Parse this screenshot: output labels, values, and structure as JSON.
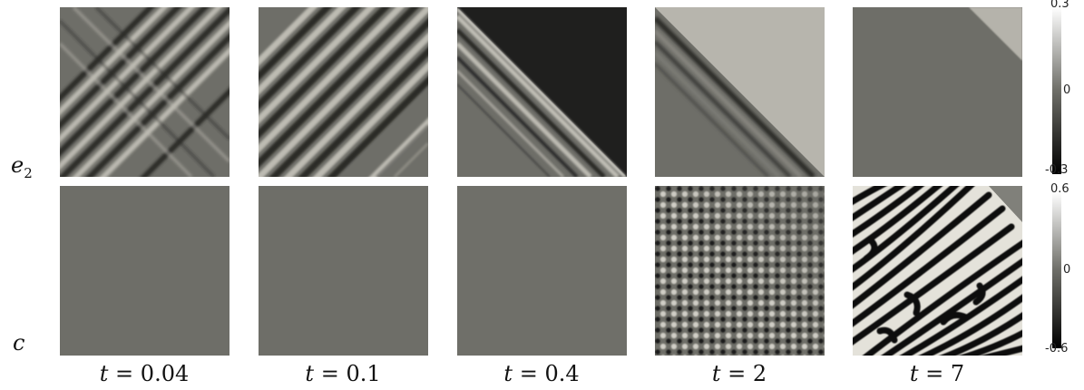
{
  "rows": [
    {
      "id": "e2",
      "symbol": "e",
      "subscript": "2",
      "colorbar": {
        "max": "0.3",
        "mid": "0",
        "min": "-0.3"
      }
    },
    {
      "id": "c",
      "symbol": "c",
      "subscript": "",
      "colorbar": {
        "max": "0.6",
        "mid": "0",
        "min": "-0.6"
      }
    }
  ],
  "columns": [
    {
      "var": "t",
      "eq": "=",
      "value": "0.04"
    },
    {
      "var": "t",
      "eq": "=",
      "value": "0.1"
    },
    {
      "var": "t",
      "eq": "=",
      "value": "0.4"
    },
    {
      "var": "t",
      "eq": "=",
      "value": "2"
    },
    {
      "var": "t",
      "eq": "=",
      "value": "7"
    }
  ],
  "colors": {
    "background": "#ffffff",
    "field_neutral": "#6e6e68",
    "dark": "#1a1a1a",
    "light": "#c8c6be"
  }
}
